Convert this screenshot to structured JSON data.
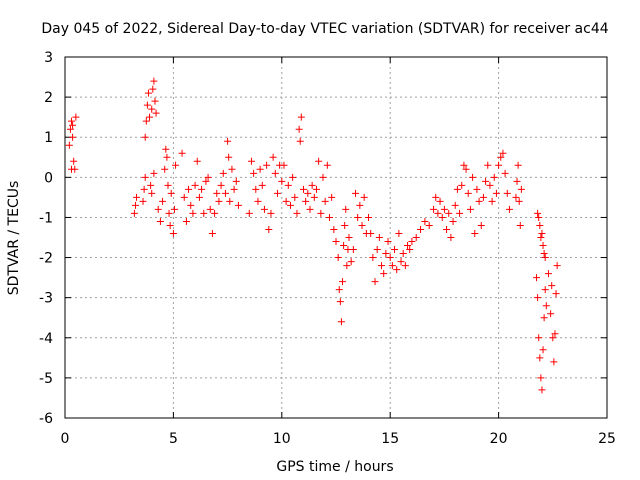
{
  "chart_data": {
    "type": "scatter",
    "title": "Day 045 of 2022, Sidereal Day-to-day VTEC variation (SDTVAR) for receiver ac44",
    "xlabel": "GPS time / hours",
    "ylabel": "SDTVAR / TECUs",
    "xlim": [
      0,
      25
    ],
    "ylim": [
      -6,
      3
    ],
    "xticks": [
      "0",
      "5",
      "10",
      "15",
      "20",
      "25"
    ],
    "yticks": [
      "3",
      "2",
      "1",
      "0",
      "-1",
      "-2",
      "-3",
      "-4",
      "-5",
      "-6"
    ],
    "grid": true,
    "marker": "+",
    "series": [
      {
        "name": "SDTVAR",
        "color": "#ff0000",
        "points": [
          [
            0.2,
            0.8
          ],
          [
            0.25,
            1.2
          ],
          [
            0.3,
            1.4
          ],
          [
            0.35,
            1.3
          ],
          [
            0.4,
            0.4
          ],
          [
            0.45,
            0.2
          ],
          [
            0.5,
            1.5
          ],
          [
            0.3,
            0.2
          ],
          [
            0.35,
            1.0
          ],
          [
            3.2,
            -0.9
          ],
          [
            3.25,
            -0.7
          ],
          [
            3.3,
            -0.5
          ],
          [
            3.6,
            -0.6
          ],
          [
            3.65,
            -0.3
          ],
          [
            3.7,
            0.0
          ],
          [
            3.7,
            1.0
          ],
          [
            3.75,
            1.4
          ],
          [
            3.8,
            1.8
          ],
          [
            3.85,
            2.1
          ],
          [
            3.9,
            1.5
          ],
          [
            3.95,
            -0.2
          ],
          [
            4.0,
            1.7
          ],
          [
            4.05,
            2.2
          ],
          [
            4.1,
            2.4
          ],
          [
            4.15,
            1.9
          ],
          [
            4.2,
            1.6
          ],
          [
            4.1,
            0.1
          ],
          [
            4.0,
            -0.4
          ],
          [
            4.3,
            -0.8
          ],
          [
            4.4,
            -1.1
          ],
          [
            4.5,
            -0.6
          ],
          [
            4.6,
            0.2
          ],
          [
            4.65,
            0.7
          ],
          [
            4.7,
            0.5
          ],
          [
            4.75,
            -0.2
          ],
          [
            4.8,
            -0.9
          ],
          [
            4.85,
            -1.2
          ],
          [
            4.9,
            -0.4
          ],
          [
            5.0,
            -1.4
          ],
          [
            5.05,
            -0.8
          ],
          [
            5.1,
            0.3
          ],
          [
            5.4,
            0.6
          ],
          [
            5.5,
            -0.5
          ],
          [
            5.6,
            -1.1
          ],
          [
            5.7,
            -0.3
          ],
          [
            5.8,
            -0.7
          ],
          [
            5.9,
            -0.9
          ],
          [
            6.0,
            -0.2
          ],
          [
            6.1,
            0.4
          ],
          [
            6.2,
            -0.5
          ],
          [
            6.3,
            -0.3
          ],
          [
            6.4,
            -0.9
          ],
          [
            6.5,
            -0.1
          ],
          [
            6.6,
            0.0
          ],
          [
            6.7,
            -0.8
          ],
          [
            6.8,
            -1.4
          ],
          [
            6.9,
            -0.9
          ],
          [
            7.0,
            -0.4
          ],
          [
            7.1,
            -0.6
          ],
          [
            7.2,
            -0.2
          ],
          [
            7.3,
            0.1
          ],
          [
            7.4,
            -0.4
          ],
          [
            7.5,
            0.9
          ],
          [
            7.55,
            0.5
          ],
          [
            7.6,
            -0.6
          ],
          [
            7.7,
            0.2
          ],
          [
            7.8,
            -0.3
          ],
          [
            7.9,
            -0.1
          ],
          [
            8.0,
            -0.7
          ],
          [
            8.5,
            -0.9
          ],
          [
            8.6,
            0.4
          ],
          [
            8.7,
            0.1
          ],
          [
            8.8,
            -0.3
          ],
          [
            8.9,
            -0.6
          ],
          [
            9.0,
            0.2
          ],
          [
            9.1,
            -0.2
          ],
          [
            9.2,
            -0.8
          ],
          [
            9.3,
            0.3
          ],
          [
            9.4,
            -1.3
          ],
          [
            9.5,
            -0.9
          ],
          [
            9.6,
            0.5
          ],
          [
            9.7,
            0.1
          ],
          [
            9.8,
            -0.4
          ],
          [
            9.9,
            0.3
          ],
          [
            10.0,
            -0.1
          ],
          [
            10.1,
            0.3
          ],
          [
            10.2,
            -0.6
          ],
          [
            10.3,
            -0.2
          ],
          [
            10.4,
            -0.7
          ],
          [
            10.5,
            0.0
          ],
          [
            10.6,
            -0.5
          ],
          [
            10.7,
            -0.9
          ],
          [
            10.8,
            1.2
          ],
          [
            10.85,
            0.9
          ],
          [
            10.9,
            1.5
          ],
          [
            11.0,
            -0.3
          ],
          [
            11.1,
            -0.6
          ],
          [
            11.2,
            -0.4
          ],
          [
            11.3,
            -0.8
          ],
          [
            11.4,
            -0.2
          ],
          [
            11.5,
            -0.5
          ],
          [
            11.6,
            -0.3
          ],
          [
            11.7,
            0.4
          ],
          [
            11.8,
            -0.9
          ],
          [
            11.9,
            0.0
          ],
          [
            12.0,
            -0.6
          ],
          [
            12.1,
            0.3
          ],
          [
            12.2,
            -1.0
          ],
          [
            12.3,
            -0.5
          ],
          [
            12.4,
            -1.3
          ],
          [
            12.5,
            -1.6
          ],
          [
            12.6,
            -2.0
          ],
          [
            12.65,
            -2.8
          ],
          [
            12.7,
            -3.1
          ],
          [
            12.75,
            -3.6
          ],
          [
            12.8,
            -2.6
          ],
          [
            12.85,
            -1.7
          ],
          [
            12.9,
            -1.2
          ],
          [
            12.95,
            -0.8
          ],
          [
            13.0,
            -2.2
          ],
          [
            13.05,
            -1.8
          ],
          [
            13.1,
            -1.5
          ],
          [
            13.2,
            -2.1
          ],
          [
            13.3,
            -1.8
          ],
          [
            13.4,
            -0.4
          ],
          [
            13.5,
            -1.0
          ],
          [
            13.6,
            -0.7
          ],
          [
            13.7,
            -1.2
          ],
          [
            13.8,
            -0.5
          ],
          [
            13.9,
            -1.4
          ],
          [
            14.0,
            -1.0
          ],
          [
            14.1,
            -1.4
          ],
          [
            14.2,
            -2.0
          ],
          [
            14.3,
            -2.6
          ],
          [
            14.4,
            -1.8
          ],
          [
            14.5,
            -1.5
          ],
          [
            14.6,
            -2.2
          ],
          [
            14.7,
            -2.4
          ],
          [
            14.8,
            -1.9
          ],
          [
            14.9,
            -1.6
          ],
          [
            15.0,
            -2.0
          ],
          [
            15.1,
            -2.2
          ],
          [
            15.2,
            -1.8
          ],
          [
            15.3,
            -2.3
          ],
          [
            15.4,
            -1.4
          ],
          [
            15.5,
            -2.1
          ],
          [
            15.6,
            -1.9
          ],
          [
            15.7,
            -2.2
          ],
          [
            15.8,
            -1.7
          ],
          [
            15.9,
            -1.8
          ],
          [
            16.0,
            -1.6
          ],
          [
            16.2,
            -1.5
          ],
          [
            16.4,
            -1.3
          ],
          [
            16.6,
            -1.1
          ],
          [
            16.8,
            -1.2
          ],
          [
            17.0,
            -0.8
          ],
          [
            17.1,
            -0.5
          ],
          [
            17.2,
            -0.9
          ],
          [
            17.3,
            -0.6
          ],
          [
            17.4,
            -1.0
          ],
          [
            17.5,
            -0.8
          ],
          [
            17.6,
            -1.3
          ],
          [
            17.7,
            -0.9
          ],
          [
            17.8,
            -1.5
          ],
          [
            17.9,
            -1.1
          ],
          [
            18.0,
            -0.7
          ],
          [
            18.1,
            -0.3
          ],
          [
            18.2,
            -0.9
          ],
          [
            18.3,
            -0.2
          ],
          [
            18.4,
            0.3
          ],
          [
            18.5,
            0.2
          ],
          [
            18.6,
            -0.4
          ],
          [
            18.7,
            -0.8
          ],
          [
            18.8,
            0.0
          ],
          [
            18.9,
            -1.4
          ],
          [
            19.0,
            -0.3
          ],
          [
            19.1,
            -0.6
          ],
          [
            19.2,
            -1.2
          ],
          [
            19.3,
            -0.5
          ],
          [
            19.4,
            -0.1
          ],
          [
            19.5,
            0.3
          ],
          [
            19.6,
            -0.2
          ],
          [
            19.7,
            -0.6
          ],
          [
            19.8,
            0.0
          ],
          [
            19.9,
            -0.4
          ],
          [
            20.0,
            0.3
          ],
          [
            20.1,
            0.5
          ],
          [
            20.2,
            0.6
          ],
          [
            20.3,
            0.1
          ],
          [
            20.4,
            -0.4
          ],
          [
            20.5,
            -0.8
          ],
          [
            20.8,
            -0.5
          ],
          [
            20.85,
            -0.1
          ],
          [
            20.9,
            0.3
          ],
          [
            20.95,
            -0.6
          ],
          [
            21.0,
            -1.2
          ],
          [
            21.05,
            -0.3
          ],
          [
            21.8,
            -0.9
          ],
          [
            21.85,
            -1.0
          ],
          [
            21.9,
            -1.2
          ],
          [
            21.95,
            -1.5
          ],
          [
            22.0,
            -1.4
          ],
          [
            22.05,
            -1.7
          ],
          [
            22.1,
            -1.9
          ],
          [
            22.15,
            -2.0
          ],
          [
            21.75,
            -2.5
          ],
          [
            21.8,
            -3.0
          ],
          [
            21.85,
            -4.0
          ],
          [
            21.9,
            -4.5
          ],
          [
            21.95,
            -5.0
          ],
          [
            22.0,
            -5.3
          ],
          [
            22.05,
            -4.3
          ],
          [
            22.1,
            -3.5
          ],
          [
            22.15,
            -2.8
          ],
          [
            22.2,
            -3.2
          ],
          [
            22.3,
            -2.4
          ],
          [
            22.4,
            -3.4
          ],
          [
            22.5,
            -4.0
          ],
          [
            22.55,
            -4.6
          ],
          [
            22.6,
            -3.9
          ],
          [
            22.65,
            -2.9
          ],
          [
            22.7,
            -2.2
          ],
          [
            22.45,
            -2.7
          ]
        ]
      }
    ]
  }
}
